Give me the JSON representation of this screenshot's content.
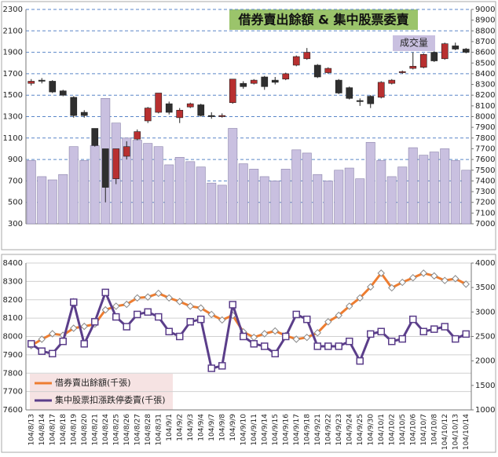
{
  "chart_data": [
    {
      "type": "candlestick",
      "title": "借券賣出餘額 & 集中股票委賣",
      "annotation": "成交量",
      "volume_color": "#c9c0e0",
      "up_color": "#b83030",
      "down_color": "#2f2f2f",
      "ylim": [
        300,
        2300
      ],
      "yticks": [
        300,
        500,
        700,
        900,
        1100,
        1300,
        1500,
        1700,
        1900,
        2100,
        2300
      ],
      "y2lim": [
        7000,
        9000
      ],
      "y2ticks": [
        7000,
        7100,
        7200,
        7300,
        7400,
        7500,
        7600,
        7700,
        7800,
        7900,
        8000,
        8100,
        8200,
        8300,
        8400,
        8500,
        8600,
        8700,
        8800,
        8900,
        9000
      ],
      "grid": true,
      "volume": [
        890,
        740,
        710,
        760,
        1020,
        890,
        1030,
        1470,
        1240,
        1100,
        1080,
        1050,
        1020,
        850,
        920,
        880,
        830,
        680,
        660,
        1190,
        860,
        810,
        740,
        700,
        810,
        990,
        960,
        760,
        700,
        800,
        820,
        720,
        1060,
        890,
        740,
        830,
        1010,
        940,
        970,
        1000,
        890,
        800
      ],
      "open": [
        8310,
        8340,
        8330,
        8240,
        8180,
        8040,
        7890,
        7700,
        7420,
        7630,
        7790,
        7960,
        8040,
        8120,
        7990,
        8090,
        8110,
        8010,
        8000,
        8130,
        8310,
        8310,
        8370,
        8340,
        8350,
        8480,
        8540,
        8480,
        8410,
        8340,
        8270,
        8150,
        8190,
        8180,
        8310,
        8410,
        8450,
        8460,
        8600,
        8540,
        8660,
        8630
      ],
      "high": [
        8350,
        8360,
        8340,
        8250,
        8190,
        8060,
        7890,
        7700,
        7700,
        7770,
        7880,
        8090,
        8220,
        8140,
        8080,
        8130,
        8120,
        8040,
        8030,
        8350,
        8330,
        8350,
        8380,
        8370,
        8410,
        8570,
        8640,
        8490,
        8460,
        8350,
        8280,
        8170,
        8200,
        8330,
        8350,
        8430,
        8600,
        8590,
        8610,
        8690,
        8690,
        8640
      ],
      "low": [
        8290,
        8310,
        8220,
        8190,
        7990,
        7990,
        7720,
        7200,
        7370,
        7600,
        7780,
        7940,
        8030,
        8020,
        7940,
        8080,
        8000,
        7980,
        7990,
        8120,
        8260,
        8300,
        8250,
        8300,
        8340,
        8470,
        8530,
        8360,
        8400,
        8210,
        8160,
        8100,
        8080,
        8170,
        8300,
        8400,
        8440,
        8450,
        8510,
        8530,
        8620,
        8590
      ],
      "close": [
        8330,
        8330,
        8230,
        8200,
        8010,
        8010,
        7730,
        7340,
        7700,
        7720,
        7860,
        8080,
        8220,
        8040,
        8060,
        8120,
        8010,
        8000,
        8010,
        8350,
        8280,
        8340,
        8280,
        8320,
        8400,
        8560,
        8600,
        8370,
        8450,
        8220,
        8170,
        8140,
        8120,
        8320,
        8340,
        8420,
        8470,
        8580,
        8520,
        8680,
        8630,
        8600
      ]
    },
    {
      "type": "line",
      "categories": [
        "104/8/13",
        "104/8/14",
        "104/8/17",
        "104/8/18",
        "104/8/19",
        "104/8/20",
        "104/8/21",
        "104/8/24",
        "104/8/25",
        "104/8/26",
        "104/8/27",
        "104/8/28",
        "104/8/31",
        "104/9/1",
        "104/9/2",
        "104/9/3",
        "104/9/4",
        "104/9/7",
        "104/9/8",
        "104/9/9",
        "104/9/10",
        "104/9/11",
        "104/9/14",
        "104/9/15",
        "104/9/16",
        "104/9/17",
        "104/9/18",
        "104/9/21",
        "104/9/22",
        "104/9/23",
        "104/9/24",
        "104/9/25",
        "104/9/30",
        "104/10/1",
        "104/10/2",
        "104/10/5",
        "104/10/6",
        "104/10/7",
        "104/10/8",
        "104/10/12",
        "104/10/13",
        "104/10/14"
      ],
      "ylim": [
        7600,
        8400
      ],
      "yticks": [
        7600,
        7700,
        7800,
        7900,
        8000,
        8100,
        8200,
        8300,
        8400
      ],
      "y2lim": [
        1000,
        4000
      ],
      "y2ticks": [
        1000,
        1500,
        2000,
        2500,
        3000,
        3500,
        4000
      ],
      "grid": true,
      "series": [
        {
          "name": "借券賣出餘額(千張)",
          "color": "#ed7d31",
          "values": [
            7950,
            7985,
            8015,
            8007,
            8045,
            8055,
            8067,
            8145,
            8165,
            8175,
            8210,
            8215,
            8235,
            8210,
            8190,
            8165,
            8155,
            8120,
            8090,
            8115,
            8025,
            7995,
            8015,
            8030,
            8005,
            7985,
            7995,
            8020,
            8080,
            8115,
            8165,
            8210,
            8270,
            8345,
            8265,
            8295,
            8320,
            8345,
            8330,
            8305,
            8315,
            8285
          ]
        },
        {
          "name": "集中股票扣漲跌停委賣(千張)",
          "color": "#5b3e8a",
          "axis": "y2",
          "values": [
            2350,
            2200,
            2150,
            2400,
            3200,
            2350,
            2800,
            3400,
            2900,
            2700,
            2950,
            3000,
            2900,
            2600,
            2500,
            2800,
            2850,
            1850,
            1900,
            3150,
            2500,
            2350,
            2300,
            2150,
            2500,
            2950,
            2850,
            2300,
            2300,
            2300,
            2400,
            2000,
            2550,
            2600,
            2400,
            2450,
            2850,
            2600,
            2650,
            2700,
            2450,
            2550
          ]
        }
      ]
    }
  ]
}
